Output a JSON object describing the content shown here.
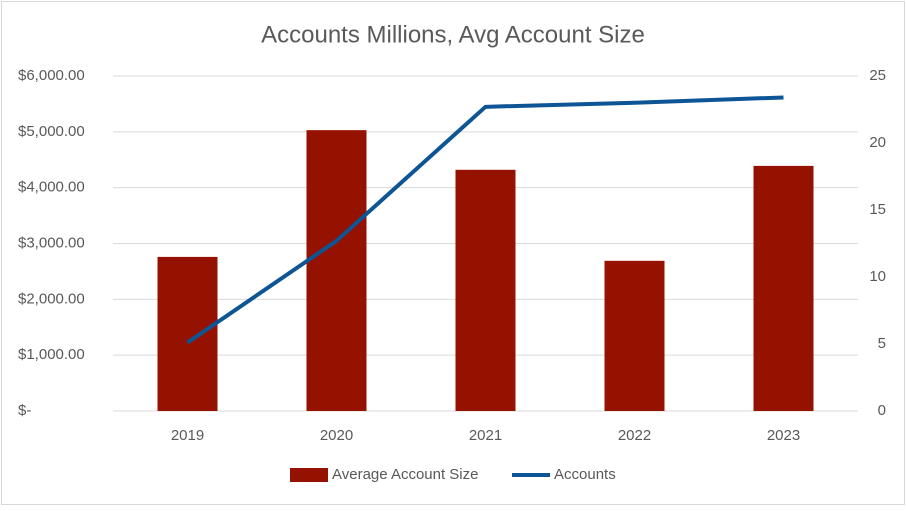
{
  "chart_data": {
    "type": "combo",
    "title": "Accounts Millions, Avg Account Size",
    "categories": [
      "2019",
      "2020",
      "2021",
      "2022",
      "2023"
    ],
    "series": [
      {
        "name": "Average Account Size",
        "type": "bar",
        "color": "#951100",
        "values": [
          2760,
          5030,
          4320,
          2690,
          4390
        ]
      },
      {
        "name": "Accounts",
        "type": "line",
        "axis": "y2",
        "color": "#0d5594",
        "values": [
          5.1,
          12.7,
          22.7,
          23.0,
          23.4
        ]
      }
    ],
    "ylim": [
      0,
      6000
    ],
    "yticks": [
      {
        "value": 0,
        "label": "$-"
      },
      {
        "value": 1000,
        "label": "$1,000.00"
      },
      {
        "value": 2000,
        "label": "$2,000.00"
      },
      {
        "value": 3000,
        "label": "$3,000.00"
      },
      {
        "value": 4000,
        "label": "$4,000.00"
      },
      {
        "value": 5000,
        "label": "$5,000.00"
      },
      {
        "value": 6000,
        "label": "$6,000.00"
      }
    ],
    "y2lim": [
      0,
      25
    ],
    "y2ticks": [
      0,
      5,
      10,
      15,
      20,
      25
    ],
    "grid": true,
    "legend": "bottom"
  }
}
